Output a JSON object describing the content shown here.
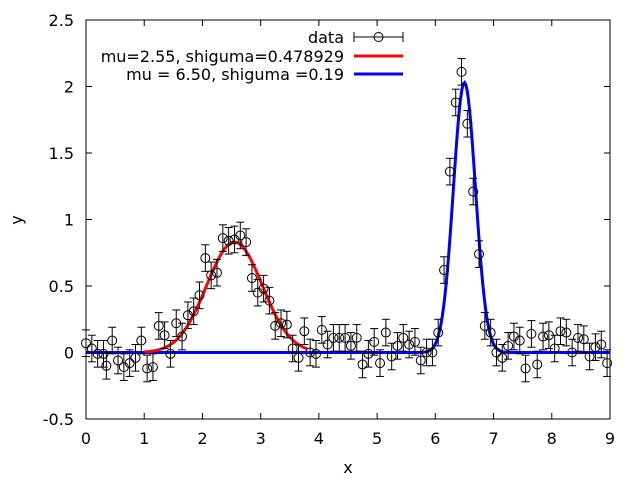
{
  "chart_data": {
    "type": "scatter",
    "xlabel": "x",
    "ylabel": "y",
    "xlim": [
      0,
      9
    ],
    "ylim": [
      -0.5,
      2.5
    ],
    "xticks": [
      0,
      1,
      2,
      3,
      4,
      5,
      6,
      7,
      8,
      9
    ],
    "yticks": [
      -0.5,
      0,
      0.5,
      1,
      1.5,
      2,
      2.5
    ],
    "xtick_labels": [
      "0",
      "1",
      "2",
      "3",
      "4",
      "5",
      "6",
      "7",
      "8",
      "9"
    ],
    "ytick_labels": [
      "-0.5",
      "0",
      "0.5",
      "1",
      "1.5",
      "2",
      "2.5"
    ],
    "grid": false,
    "legend_position": "top-right",
    "series": [
      {
        "name": "data",
        "kind": "points-with-errorbars",
        "color": "#000000",
        "error": 0.1,
        "points": [
          [
            0.0,
            0.07
          ],
          [
            0.1,
            0.03
          ],
          [
            0.2,
            -0.01
          ],
          [
            0.3,
            -0.01
          ],
          [
            0.35,
            -0.1
          ],
          [
            0.45,
            0.09
          ],
          [
            0.55,
            -0.06
          ],
          [
            0.65,
            -0.11
          ],
          [
            0.75,
            -0.08
          ],
          [
            0.85,
            -0.04
          ],
          [
            0.95,
            0.09
          ],
          [
            1.05,
            -0.12
          ],
          [
            1.15,
            -0.11
          ],
          [
            1.25,
            0.2
          ],
          [
            1.35,
            0.13
          ],
          [
            1.45,
            -0.01
          ],
          [
            1.55,
            0.22
          ],
          [
            1.65,
            0.12
          ],
          [
            1.75,
            0.28
          ],
          [
            1.85,
            0.31
          ],
          [
            1.95,
            0.43
          ],
          [
            2.05,
            0.71
          ],
          [
            2.15,
            0.58
          ],
          [
            2.25,
            0.6
          ],
          [
            2.35,
            0.86
          ],
          [
            2.45,
            0.84
          ],
          [
            2.55,
            0.85
          ],
          [
            2.65,
            0.88
          ],
          [
            2.75,
            0.83
          ],
          [
            2.85,
            0.56
          ],
          [
            2.95,
            0.45
          ],
          [
            3.05,
            0.48
          ],
          [
            3.15,
            0.39
          ],
          [
            3.25,
            0.2
          ],
          [
            3.35,
            0.22
          ],
          [
            3.45,
            0.21
          ],
          [
            3.55,
            0.03
          ],
          [
            3.65,
            -0.04
          ],
          [
            3.75,
            0.16
          ],
          [
            3.85,
            0.0
          ],
          [
            3.95,
            -0.01
          ],
          [
            4.05,
            0.17
          ],
          [
            4.15,
            0.06
          ],
          [
            4.25,
            0.11
          ],
          [
            4.35,
            0.11
          ],
          [
            4.45,
            0.11
          ],
          [
            4.55,
            0.05
          ],
          [
            4.65,
            0.11
          ],
          [
            4.75,
            -0.09
          ],
          [
            4.85,
            -0.01
          ],
          [
            4.95,
            0.08
          ],
          [
            5.05,
            -0.08
          ],
          [
            5.15,
            0.15
          ],
          [
            5.25,
            -0.03
          ],
          [
            5.35,
            0.05
          ],
          [
            5.45,
            0.11
          ],
          [
            5.55,
            0.06
          ],
          [
            5.65,
            0.08
          ],
          [
            5.75,
            -0.06
          ],
          [
            5.85,
            0.0
          ],
          [
            5.95,
            0.0
          ],
          [
            6.05,
            0.15
          ],
          [
            6.15,
            0.62
          ],
          [
            6.25,
            1.36
          ],
          [
            6.35,
            1.88
          ],
          [
            6.45,
            2.11
          ],
          [
            6.55,
            1.72
          ],
          [
            6.65,
            1.21
          ],
          [
            6.75,
            0.74
          ],
          [
            6.85,
            0.2
          ],
          [
            6.95,
            0.15
          ],
          [
            7.05,
            0.0
          ],
          [
            7.15,
            -0.04
          ],
          [
            7.25,
            0.05
          ],
          [
            7.35,
            0.12
          ],
          [
            7.45,
            0.09
          ],
          [
            7.55,
            -0.12
          ],
          [
            7.65,
            0.14
          ],
          [
            7.75,
            -0.09
          ],
          [
            7.85,
            0.12
          ],
          [
            7.95,
            0.13
          ],
          [
            8.05,
            0.03
          ],
          [
            8.15,
            0.16
          ],
          [
            8.25,
            0.15
          ],
          [
            8.35,
            0.0
          ],
          [
            8.45,
            0.11
          ],
          [
            8.55,
            0.1
          ],
          [
            8.65,
            -0.03
          ],
          [
            8.75,
            0.04
          ],
          [
            8.85,
            0.06
          ],
          [
            8.95,
            -0.08
          ]
        ]
      },
      {
        "name": "mu=2.55, shiguma=0.478929",
        "kind": "line",
        "color": "#ff0000",
        "function": "gaussian",
        "mu": 2.55,
        "sigma": 0.478929,
        "amplitude": 0.83,
        "x_range": [
          1.0,
          3.8
        ]
      },
      {
        "name": "mu = 6.50, shiguma =0.19",
        "kind": "line",
        "color": "#0000ff",
        "function": "gaussian",
        "mu": 6.5,
        "sigma": 0.19,
        "amplitude": 2.03,
        "x_range": [
          0.0,
          9.0
        ]
      }
    ]
  }
}
